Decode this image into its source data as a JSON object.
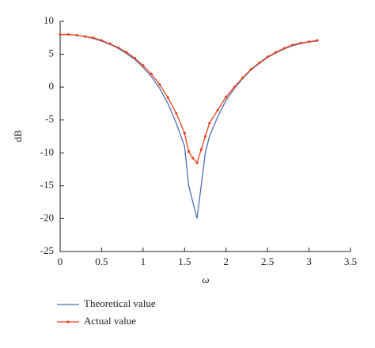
{
  "chart_data": {
    "type": "line",
    "x_label": "ω",
    "y_label": "dB",
    "x": [
      0,
      0.1,
      0.2,
      0.3,
      0.4,
      0.5,
      0.6,
      0.7,
      0.8,
      0.9,
      1.0,
      1.1,
      1.2,
      1.3,
      1.4,
      1.5,
      1.55,
      1.6,
      1.65,
      1.7,
      1.75,
      1.8,
      1.9,
      2.0,
      2.1,
      2.2,
      2.3,
      2.4,
      2.5,
      2.6,
      2.7,
      2.8,
      2.9,
      3.0,
      3.1
    ],
    "series": [
      {
        "name": "Theoretical value",
        "color": "#4a6fb5",
        "marker": false,
        "values": [
          8.0,
          8.0,
          7.9,
          7.7,
          7.4,
          7.0,
          6.5,
          5.9,
          5.1,
          4.2,
          3.0,
          1.6,
          -0.2,
          -2.5,
          -5.5,
          -9.0,
          -15,
          -17.5,
          -20,
          -15,
          -10,
          -7.5,
          -4.5,
          -2.0,
          -0.2,
          1.3,
          2.6,
          3.6,
          4.5,
          5.2,
          5.8,
          6.3,
          6.6,
          6.9,
          7.0
        ]
      },
      {
        "name": "Actual value",
        "color": "#e8401c",
        "marker": true,
        "values": [
          8.0,
          8.0,
          7.9,
          7.7,
          7.5,
          7.1,
          6.6,
          6.0,
          5.3,
          4.4,
          3.3,
          2.0,
          0.4,
          -1.6,
          -4.0,
          -7.0,
          -9.8,
          -10.8,
          -11.5,
          -9.5,
          -7.5,
          -5.5,
          -3.5,
          -1.5,
          0.0,
          1.4,
          2.7,
          3.7,
          4.6,
          5.3,
          5.9,
          6.4,
          6.7,
          6.9,
          7.1
        ]
      }
    ],
    "xlim": [
      0,
      3.5
    ],
    "xticks": [
      0,
      0.5,
      1,
      1.5,
      2,
      2.5,
      3,
      3.5
    ],
    "ylim": [
      -25,
      10
    ],
    "yticks": [
      -25,
      -20,
      -15,
      -10,
      -5,
      0,
      5,
      10
    ]
  }
}
